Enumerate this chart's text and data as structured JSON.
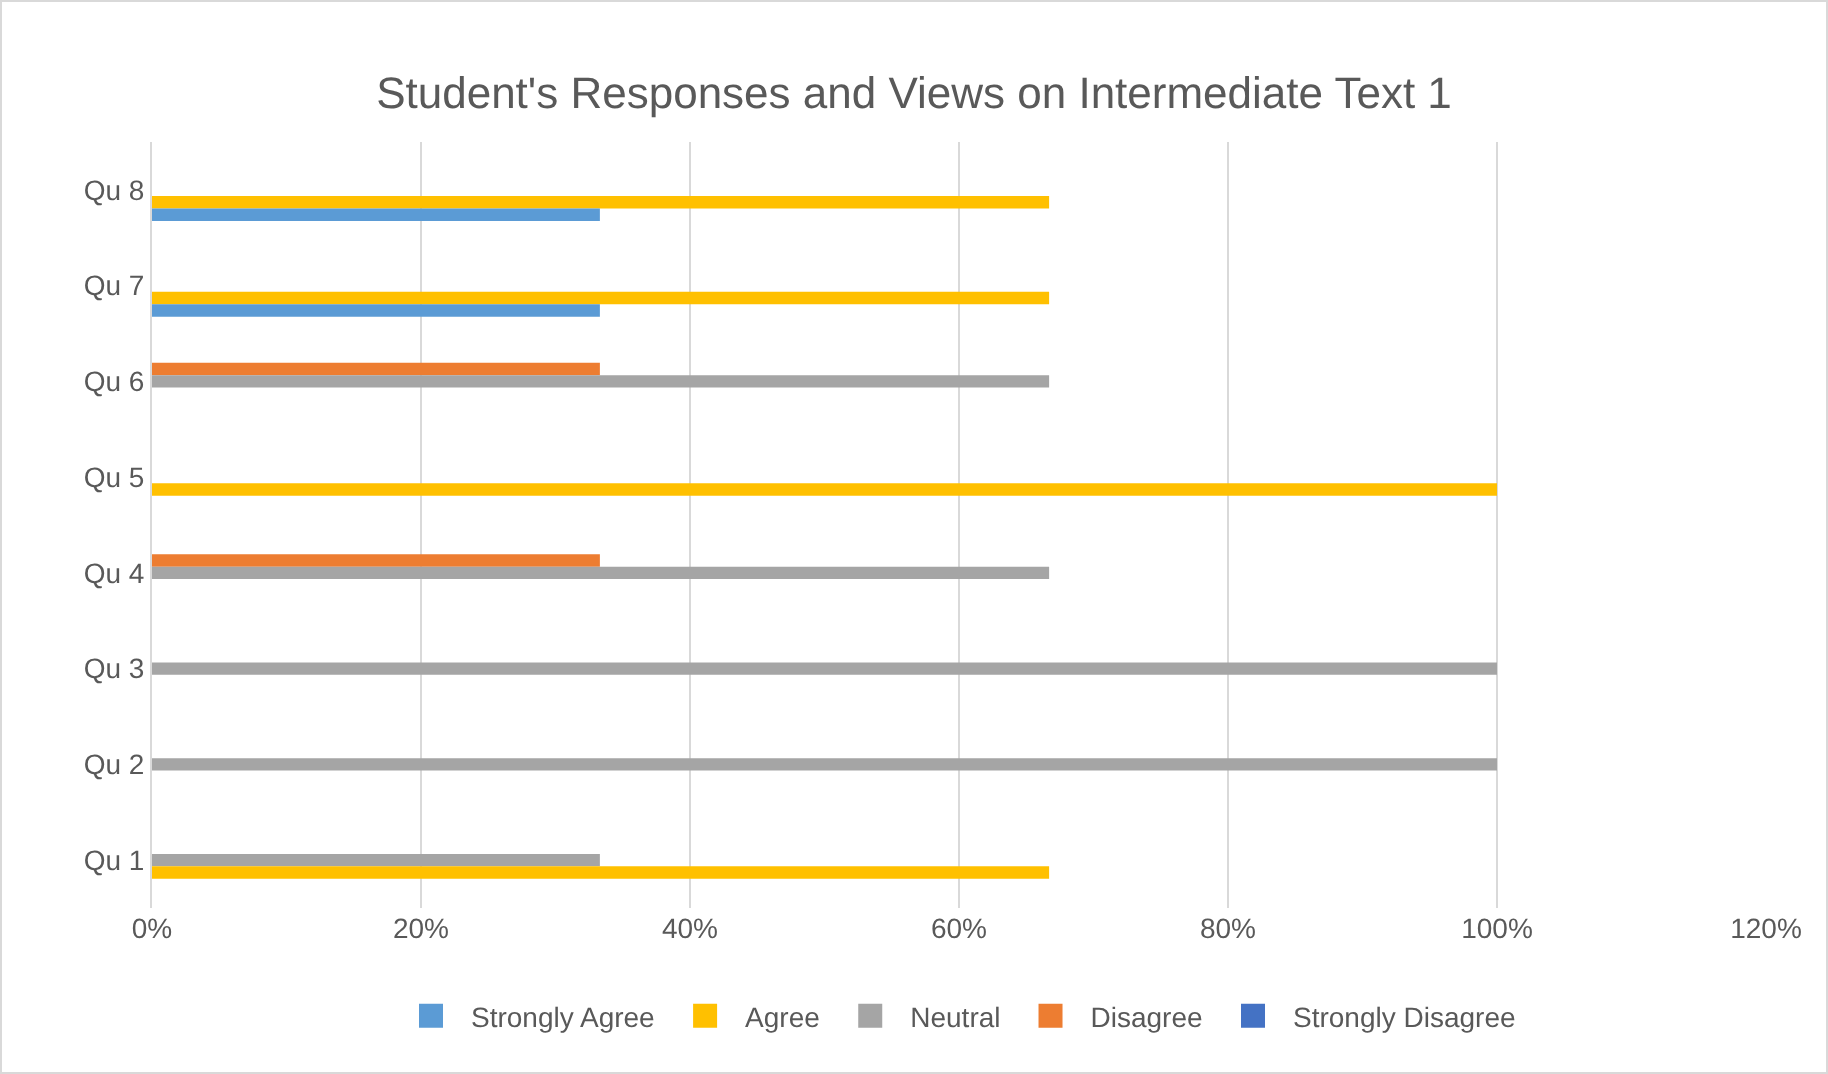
{
  "chart_data": {
    "type": "bar",
    "orientation": "horizontal",
    "title": "Student's Responses and Views on Intermediate Text 1",
    "categories": [
      "Qu 8",
      "Qu 7",
      "Qu 6",
      "Qu 5",
      "Qu 4",
      "Qu 3",
      "Qu 2",
      "Qu 1"
    ],
    "series": [
      {
        "name": "Strongly Agree",
        "color": "#5b9bd5",
        "values": [
          33.3,
          33.3,
          null,
          null,
          null,
          null,
          null,
          null
        ]
      },
      {
        "name": "Agree",
        "color": "#ffc000",
        "values": [
          66.7,
          66.7,
          null,
          100,
          null,
          null,
          null,
          66.7
        ]
      },
      {
        "name": "Neutral",
        "color": "#a5a5a5",
        "values": [
          null,
          null,
          66.7,
          null,
          66.7,
          100,
          100,
          33.3
        ]
      },
      {
        "name": "Disagree",
        "color": "#ed7d31",
        "values": [
          null,
          null,
          33.3,
          null,
          33.3,
          null,
          null,
          null
        ]
      },
      {
        "name": "Strongly Disagree",
        "color": "#4472c4",
        "values": [
          null,
          null,
          null,
          null,
          null,
          null,
          null,
          null
        ]
      }
    ],
    "xlim": [
      0,
      120
    ],
    "xticks": [
      {
        "value": 0,
        "label": "0%"
      },
      {
        "value": 20,
        "label": "20%"
      },
      {
        "value": 40,
        "label": "40%"
      },
      {
        "value": 60,
        "label": "60%"
      },
      {
        "value": 80,
        "label": "80%"
      },
      {
        "value": 100,
        "label": "100%"
      },
      {
        "value": 120,
        "label": "120%"
      }
    ],
    "grid": "x",
    "legend": "bottom"
  }
}
